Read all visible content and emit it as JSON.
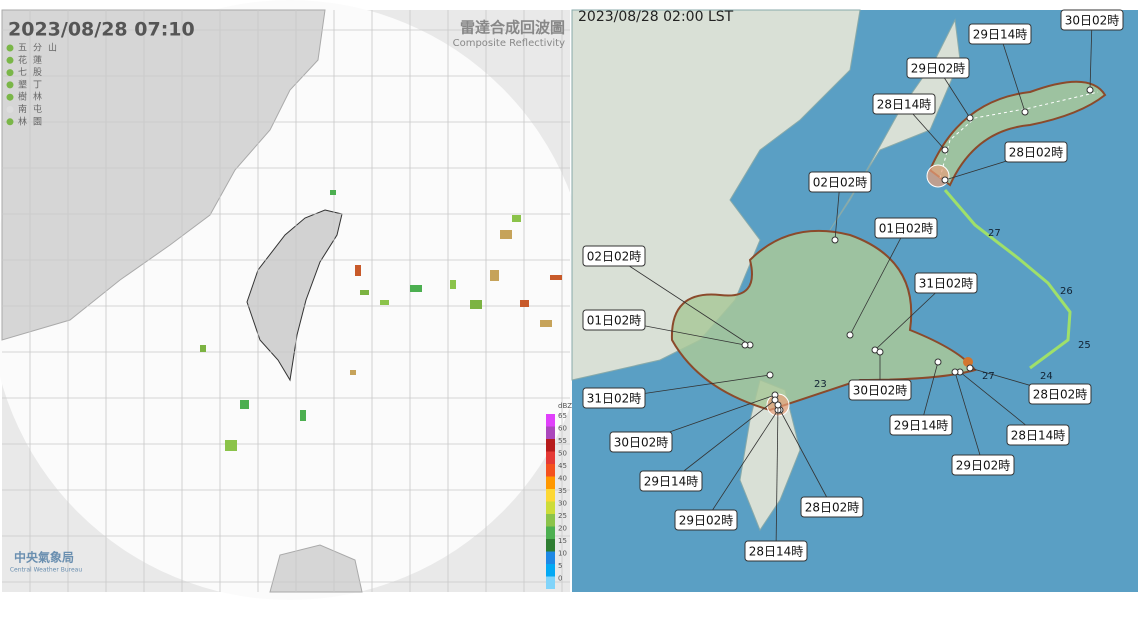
{
  "radar": {
    "timestamp": "2023/08/28  07:10",
    "title_zh": "雷達合成回波圖",
    "title_en": "Composite Reflectivity",
    "stations": [
      "五分山",
      "花蓮",
      "七股",
      "墾丁",
      "樹林",
      "南屯",
      "林園"
    ],
    "scale": {
      "unit": "dBZ",
      "ticks": [
        65,
        60,
        55,
        50,
        45,
        40,
        35,
        30,
        25,
        20,
        15,
        10,
        5,
        0
      ]
    },
    "logo": {
      "zh": "中央氣象局",
      "en": "Central Weather Bureau"
    }
  },
  "track": {
    "timestamp": "2023/08/28 02:00 LST",
    "labels": [
      "30日02時",
      "29日14時",
      "29日02時",
      "28日14時",
      "28日02時",
      "02日02時",
      "01日02時",
      "31日02時",
      "02日02時",
      "01日02時",
      "31日02時",
      "30日02時",
      "30日02時",
      "29日14時",
      "28日02時",
      "28日14時",
      "29日02時",
      "29日14時",
      "28日02時",
      "29日02時",
      "28日14時"
    ],
    "day_marks": [
      "27",
      "26",
      "25",
      "24",
      "23",
      "27"
    ]
  }
}
